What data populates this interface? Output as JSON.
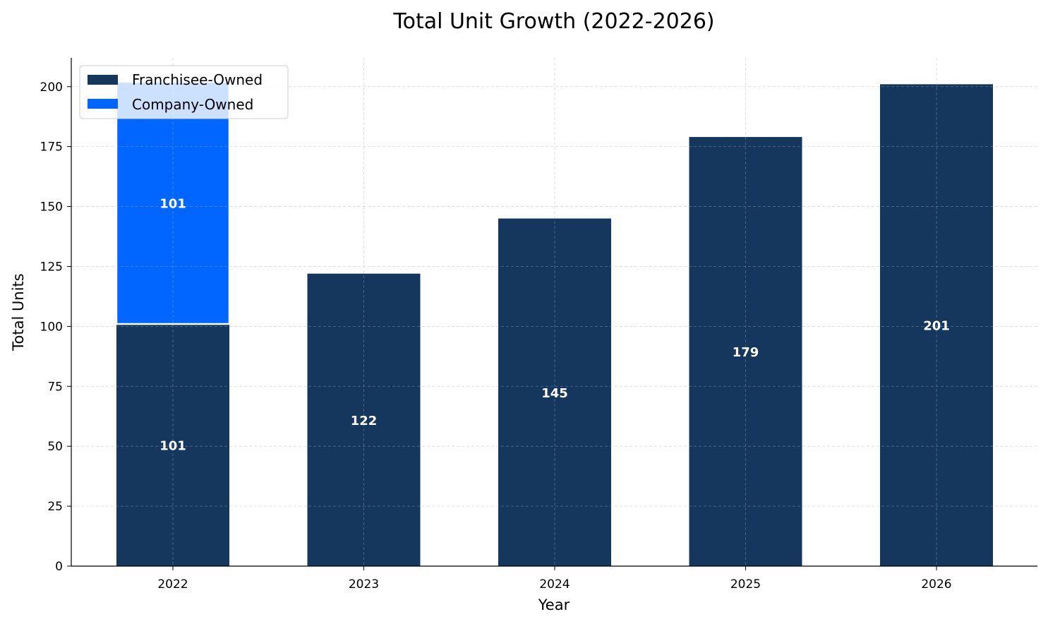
{
  "chart_data": {
    "type": "bar",
    "stacked": true,
    "title": "Total Unit Growth (2022-2026)",
    "xlabel": "Year",
    "ylabel": "Total Units",
    "categories": [
      "2022",
      "2023",
      "2024",
      "2025",
      "2026"
    ],
    "ylim": [
      0,
      212
    ],
    "yticks": [
      0,
      25,
      50,
      75,
      100,
      125,
      150,
      175,
      200
    ],
    "grid": true,
    "legend_position": "top-left",
    "series": [
      {
        "name": "Franchisee-Owned",
        "color": "#15375e",
        "values": [
          101,
          122,
          145,
          179,
          201
        ],
        "labels": [
          "101",
          "122",
          "145",
          "179",
          "201"
        ]
      },
      {
        "name": "Company-Owned",
        "color": "#0066ff",
        "values": [
          101,
          0,
          0,
          0,
          0
        ],
        "labels": [
          "101",
          "",
          "",
          "",
          ""
        ]
      }
    ]
  }
}
